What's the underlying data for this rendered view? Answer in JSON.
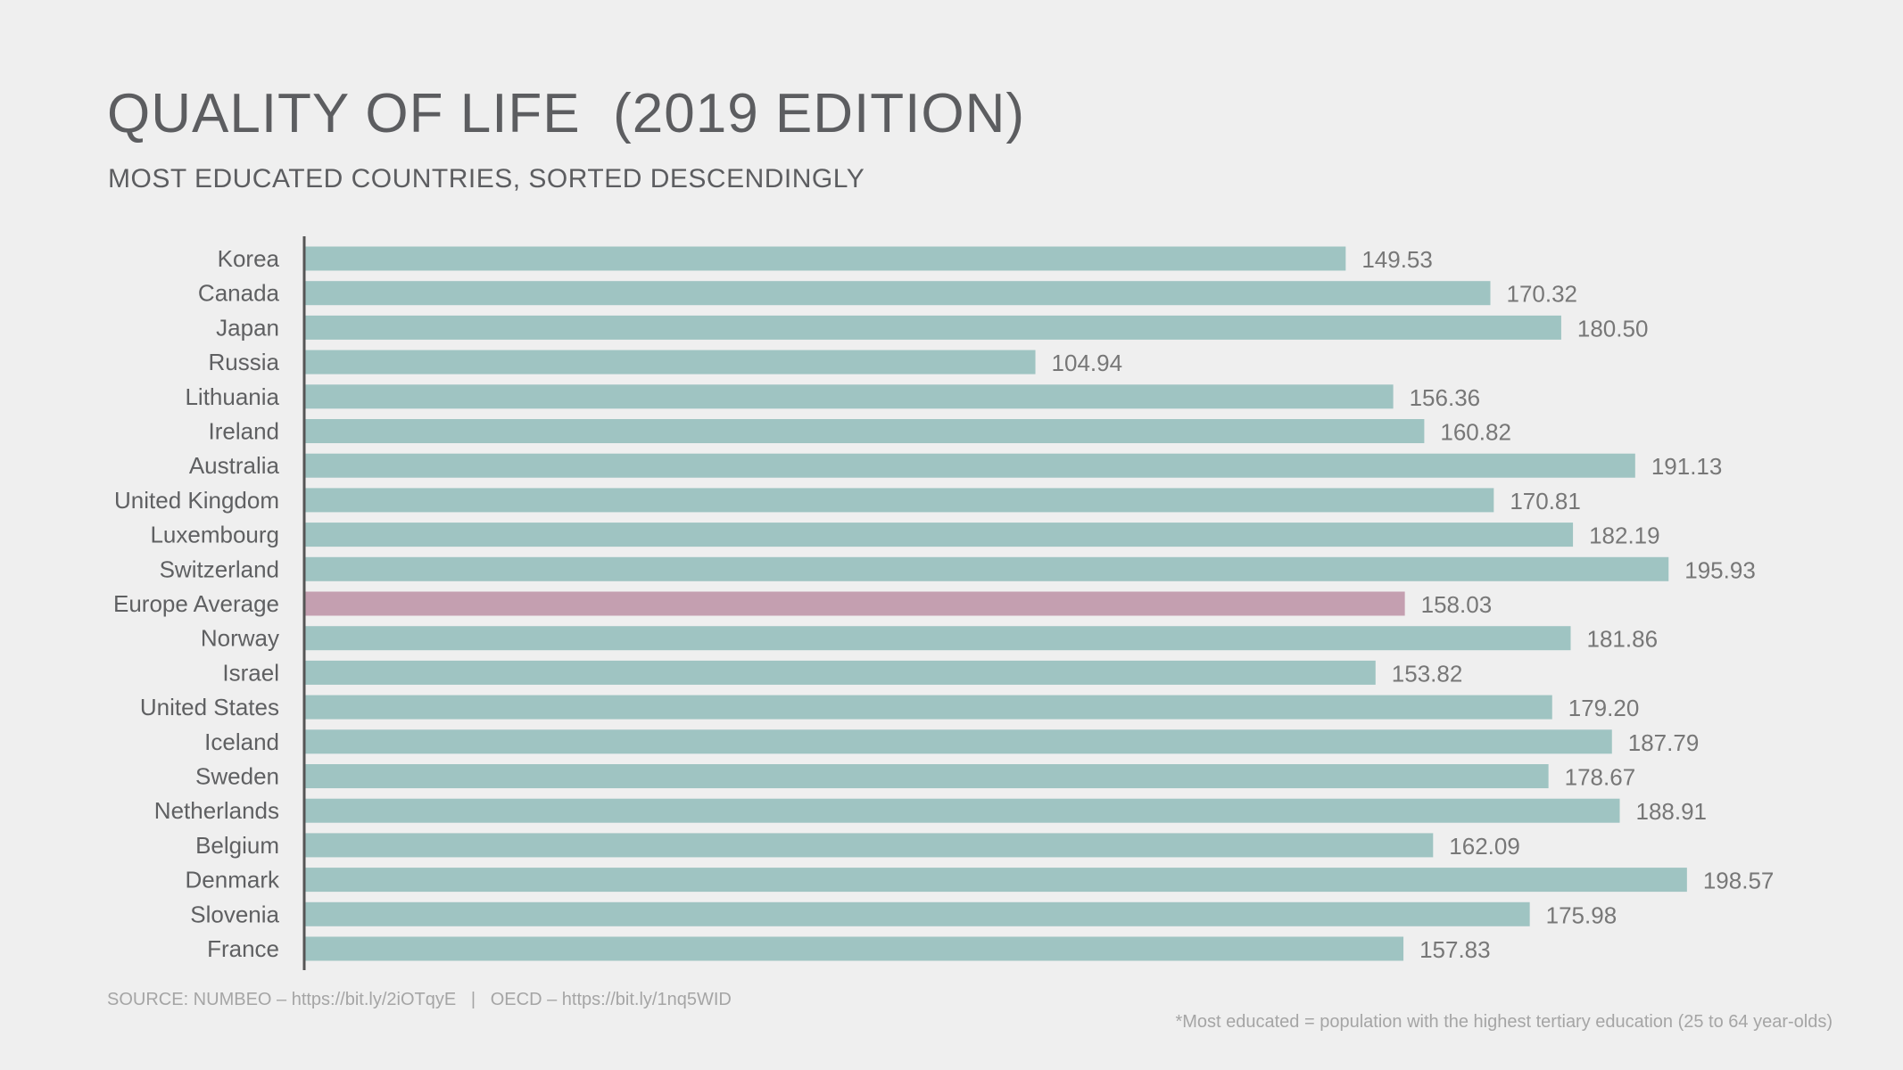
{
  "title": "QUALITY OF LIFE  (2019 EDITION)",
  "subtitle": "MOST EDUCATED COUNTRIES, SORTED DESCENDINGLY",
  "source": "SOURCE: NUMBEO – https://bit.ly/2iOTqyE   |   OECD – https://bit.ly/1nq5WID",
  "footnote": "*Most educated = population with the highest tertiary education (25 to 64 year-olds)",
  "colors": {
    "bar": "#9fc4c2",
    "highlight": "#c49fb0",
    "text": "#5f6062",
    "background": "#efefef"
  },
  "chart_data": {
    "type": "bar",
    "orientation": "horizontal",
    "categories": [
      "Korea",
      "Canada",
      "Japan",
      "Russia",
      "Lithuania",
      "Ireland",
      "Australia",
      "United Kingdom",
      "Luxembourg",
      "Switzerland",
      "Europe Average",
      "Norway",
      "Israel",
      "United States",
      "Iceland",
      "Sweden",
      "Netherlands",
      "Belgium",
      "Denmark",
      "Slovenia",
      "France"
    ],
    "values": [
      149.53,
      170.32,
      180.5,
      104.94,
      156.36,
      160.82,
      191.13,
      170.81,
      182.19,
      195.93,
      158.03,
      181.86,
      153.82,
      179.2,
      187.79,
      178.67,
      188.91,
      162.09,
      198.57,
      175.98,
      157.83
    ],
    "value_labels": [
      "149.53",
      "170.32",
      "180.50",
      "104.94",
      "156.36",
      "160.82",
      "191.13",
      "170.81",
      "182.19",
      "195.93",
      "158.03",
      "181.86",
      "153.82",
      "179.20",
      "187.79",
      "178.67",
      "188.91",
      "162.09",
      "198.57",
      "175.98",
      "157.83"
    ],
    "highlight": "Europe Average",
    "xlim": [
      0,
      198.57
    ],
    "grid": false,
    "legend": "none"
  }
}
